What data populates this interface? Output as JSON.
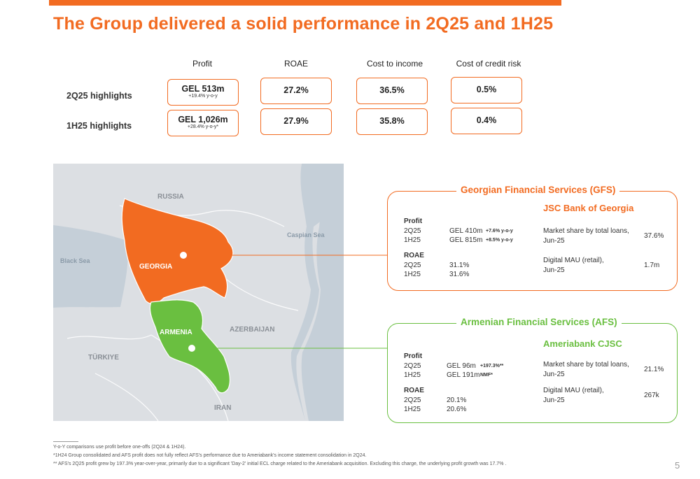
{
  "title": "The Group delivered a solid performance in 2Q25 and 1H25",
  "kpis": {
    "headers": [
      "Profit",
      "ROAE",
      "Cost to income",
      "Cost of credit risk"
    ],
    "rows": [
      {
        "label": "2Q25 highlights",
        "profit": "GEL 513m",
        "profit_sub": "+19.4% y-o-y",
        "roae": "27.2%",
        "cost_to_income": "36.5%",
        "cost_of_credit_risk": "0.5%"
      },
      {
        "label": "1H25 highlights",
        "profit": "GEL 1,026m",
        "profit_sub": "+28.4% y-o-y*",
        "roae": "27.9%",
        "cost_to_income": "35.8%",
        "cost_of_credit_risk": "0.4%"
      }
    ]
  },
  "map": {
    "labels": {
      "russia": "RUSSIA",
      "caspian": "Caspian Sea",
      "black_sea": "Black Sea",
      "georgia": "GEORGIA",
      "armenia": "ARMENIA",
      "azerbaijan": "AZERBAIJAN",
      "turkiye": "TÜRKIYE",
      "iran": "IRAN"
    },
    "colors": {
      "georgia": "#f26b21",
      "armenia": "#6abf40",
      "land": "#dcdfe3",
      "sea": "#c5cfd8"
    }
  },
  "gfs": {
    "title": "Georgian Financial Services (GFS)",
    "bank": "JSC Bank of Georgia",
    "profit_label": "Profit",
    "profit_rows": [
      {
        "period": "2Q25",
        "value": "GEL 410m",
        "change": "+7.6% y-o-y"
      },
      {
        "period": "1H25",
        "value": "GEL 815m",
        "change": "+8.5% y-o-y"
      }
    ],
    "roae_label": "ROAE",
    "roae_rows": [
      {
        "period": "2Q25",
        "value": "31.1%"
      },
      {
        "period": "1H25",
        "value": "31.6%"
      }
    ],
    "metric1_label": "Market share by total loans,",
    "metric1_date": "Jun-25",
    "metric1_value": "37.6%",
    "metric2_label": "Digital MAU (retail),",
    "metric2_date": "Jun-25",
    "metric2_value": "1.7m"
  },
  "afs": {
    "title": "Armenian Financial Services (AFS)",
    "bank": "Ameriabank CJSC",
    "profit_label": "Profit",
    "profit_rows": [
      {
        "period": "2Q25",
        "value": "GEL 96m",
        "change": "+197.3%**"
      },
      {
        "period": "1H25",
        "value": "GEL 191m",
        "change": "NMF*"
      }
    ],
    "roae_label": "ROAE",
    "roae_rows": [
      {
        "period": "2Q25",
        "value": "20.1%"
      },
      {
        "period": "1H25",
        "value": "20.6%"
      }
    ],
    "metric1_label": "Market share by total loans,",
    "metric1_date": "Jun-25",
    "metric1_value": "21.1%",
    "metric2_label": "Digital MAU (retail),",
    "metric2_date": "Jun-25",
    "metric2_value": "267k"
  },
  "footnotes": [
    "Y-o-Y comparisons use profit before one-offs (2Q24 & 1H24).",
    "*1H24 Group consolidated and AFS profit does not fully reflect AFS's performance due to Ameriabank's income statement consolidation in 2Q24.",
    "** AFS's 2Q25 profit grew by 197.3% year-over-year, primarily due to a significant 'Day-2' initial ECL charge related to the Ameriabank acquisition. Excluding this charge, the underlying profit growth was 17.7% ."
  ],
  "page_number": "5"
}
